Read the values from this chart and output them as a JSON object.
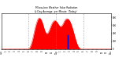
{
  "background_color": "#ffffff",
  "plot_bg_color": "#ffffff",
  "grid_color": "#888888",
  "bar_color": "#ff0000",
  "line_color": "#0000cc",
  "text_color": "#000000",
  "xlim": [
    0,
    1440
  ],
  "ylim": [
    0,
    900
  ],
  "y_ticks": [
    0,
    200,
    400,
    600,
    800
  ],
  "y_tick_labels": [
    "0",
    "200",
    "400",
    "600",
    "800"
  ],
  "x_ticks": [
    0,
    60,
    120,
    180,
    240,
    300,
    360,
    420,
    480,
    540,
    600,
    660,
    720,
    780,
    840,
    900,
    960,
    1020,
    1080,
    1140,
    1200,
    1260,
    1320,
    1380,
    1440
  ],
  "x_tick_labels": [
    "12a",
    "1",
    "2",
    "3",
    "4",
    "5",
    "6",
    "7",
    "8",
    "9",
    "10",
    "11",
    "12p",
    "1",
    "2",
    "3",
    "4",
    "5",
    "6",
    "7",
    "8",
    "9",
    "10",
    "11",
    "12a"
  ],
  "dashed_vlines": [
    360,
    720,
    1080
  ],
  "current_time_x": 870,
  "current_time_y_top": 350,
  "solar_data_x": [
    360,
    370,
    380,
    390,
    400,
    410,
    420,
    430,
    440,
    450,
    460,
    470,
    480,
    490,
    500,
    510,
    520,
    530,
    540,
    550,
    560,
    570,
    580,
    590,
    600,
    610,
    620,
    630,
    640,
    650,
    660,
    670,
    680,
    690,
    700,
    710,
    720,
    730,
    740,
    750,
    760,
    770,
    780,
    790,
    800,
    810,
    820,
    830,
    840,
    850,
    860,
    870,
    880,
    890,
    900,
    910,
    920,
    930,
    940,
    950,
    960,
    970,
    980,
    990,
    1000,
    1010,
    1020,
    1030,
    1040,
    1050,
    1060,
    1070,
    1080
  ],
  "solar_data_y": [
    5,
    20,
    50,
    100,
    160,
    230,
    310,
    400,
    490,
    570,
    640,
    700,
    750,
    780,
    790,
    780,
    760,
    720,
    670,
    610,
    540,
    480,
    430,
    400,
    390,
    400,
    430,
    470,
    520,
    570,
    620,
    660,
    690,
    710,
    720,
    720,
    710,
    690,
    660,
    630,
    600,
    580,
    570,
    580,
    600,
    630,
    670,
    710,
    740,
    760,
    770,
    770,
    760,
    740,
    710,
    670,
    620,
    560,
    500,
    430,
    360,
    290,
    220,
    160,
    110,
    70,
    40,
    20,
    8,
    3,
    1,
    0,
    0
  ],
  "title_line1": "Milwaukee Weather Solar Radiation",
  "title_line2": "& Day Average  per Minute  (Today)"
}
